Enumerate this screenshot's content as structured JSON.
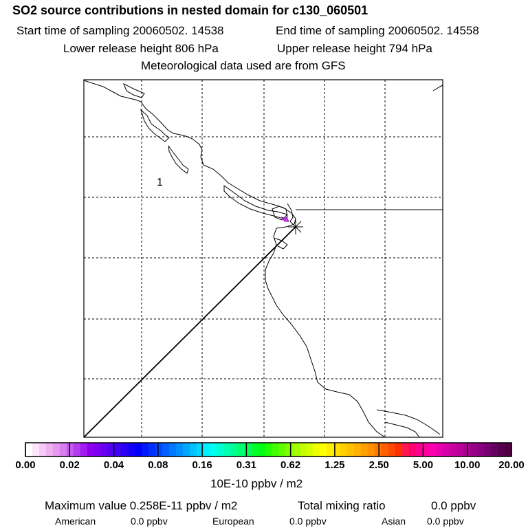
{
  "header": {
    "title": "SO2 source contributions in nested domain for c130_060501",
    "start_sampling": "Start time of sampling 20060502. 14538",
    "end_sampling": "End time of sampling 20060502. 14558",
    "lower_height": "Lower release height  806 hPa",
    "upper_height": "Upper release height  794 hPa",
    "met_data": "Meteorological data used are from GFS"
  },
  "map": {
    "label_1": "1",
    "grid": true
  },
  "colorbar": {
    "unit_label": "10E-10 ppbv / m2",
    "tick_labels": [
      "0.00",
      "0.02",
      "0.04",
      "0.08",
      "0.16",
      "0.31",
      "0.62",
      "1.25",
      "2.50",
      "5.00",
      "10.00",
      "20.00"
    ],
    "colors": [
      "#ffffff",
      "#fde6fb",
      "#f6ccf6",
      "#eeb2f1",
      "#e699ee",
      "#d77fee",
      "#c55cef",
      "#b33cf0",
      "#a21df1",
      "#9000f0",
      "#7f00f2",
      "#6a00f2",
      "#5500f3",
      "#4000f4",
      "#2a00f5",
      "#1500f7",
      "#0000ff",
      "#0018ff",
      "#0030ff",
      "#0048ff",
      "#0060ff",
      "#0078ff",
      "#0090ff",
      "#00a8ff",
      "#00c0ff",
      "#00d8ff",
      "#00f0ff",
      "#00ffee",
      "#00ffd0",
      "#00ffb0",
      "#00ff90",
      "#00ff70",
      "#00ff50",
      "#00ff30",
      "#00ff10",
      "#20ff00",
      "#40ff00",
      "#60ff00",
      "#80ff00",
      "#a0ff00",
      "#c0ff00",
      "#d8ff00",
      "#f0ff00",
      "#ffff00",
      "#fff000",
      "#ffe000",
      "#ffd000",
      "#ffc000",
      "#ffb000",
      "#ffa000",
      "#ff9000",
      "#ff7800",
      "#ff6000",
      "#ff4800",
      "#ff3000",
      "#ff1850",
      "#ff0070",
      "#ff0090",
      "#ff00a0",
      "#ff00b0",
      "#e800b0",
      "#d800a8",
      "#c800a0",
      "#b80098",
      "#a80090",
      "#980088",
      "#880080",
      "#780070",
      "#680060",
      "#580050",
      "#500040"
    ]
  },
  "footer": {
    "max_value": "Maximum value  0.258E-11 ppbv / m2",
    "total_mixing": "Total mixing ratio",
    "total_mixing_value": "0.0 ppbv",
    "american_label": "American",
    "american_value": "0.0 ppbv",
    "european_label": "European",
    "european_value": "0.0 ppbv",
    "asian_label": "Asian",
    "asian_value": "0.0 ppbv"
  },
  "chart_data": {
    "type": "heatmap",
    "title": "SO2 source contributions in nested domain for c130_060501",
    "colorbar_ticks": [
      0.0,
      0.02,
      0.04,
      0.08,
      0.16,
      0.31,
      0.62,
      1.25,
      2.5,
      5.0,
      10.0,
      20.0
    ],
    "colorbar_unit": "10E-10 ppbv / m2",
    "max_value": "0.258E-11 ppbv / m2",
    "grid": true
  }
}
